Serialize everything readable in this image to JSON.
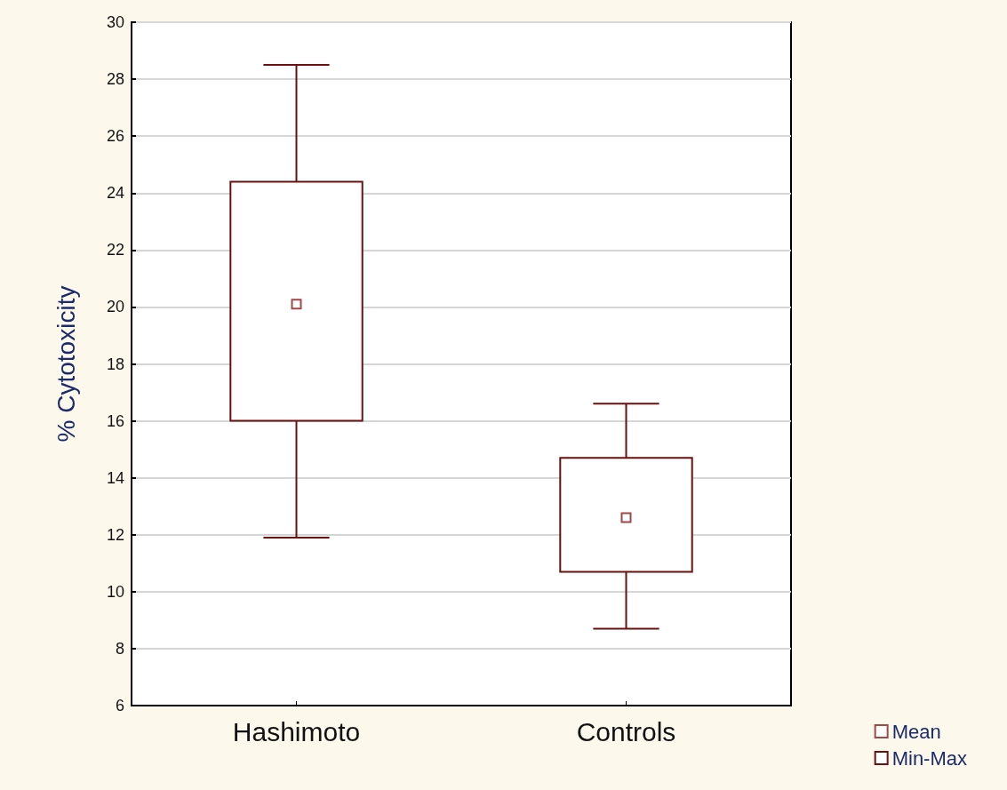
{
  "chart_data": {
    "type": "box",
    "ylabel": "% Cytotoxicity",
    "categories": [
      "Hashimoto",
      "Controls"
    ],
    "series": [
      {
        "type": "scatter",
        "name": "Mean",
        "color": "#8b1a1a",
        "marker": "square",
        "x": [
          "Hashimoto",
          "Controls"
        ],
        "values": [
          20.1,
          12.6
        ]
      },
      {
        "name": "Min-Max",
        "color": "#6b1010",
        "boxes": [
          {
            "low": 11.9,
            "q1": 16.0,
            "median": null,
            "q3": 24.4,
            "high": 28.5
          },
          {
            "low": 8.7,
            "q1": 10.7,
            "median": null,
            "q3": 14.7,
            "high": 16.6
          }
        ]
      }
    ],
    "ylim": [
      6,
      30
    ],
    "yticks": [
      6,
      8,
      10,
      12,
      14,
      16,
      18,
      20,
      22,
      24,
      26,
      28,
      30
    ],
    "grid": "y",
    "legend": "bottom right"
  }
}
